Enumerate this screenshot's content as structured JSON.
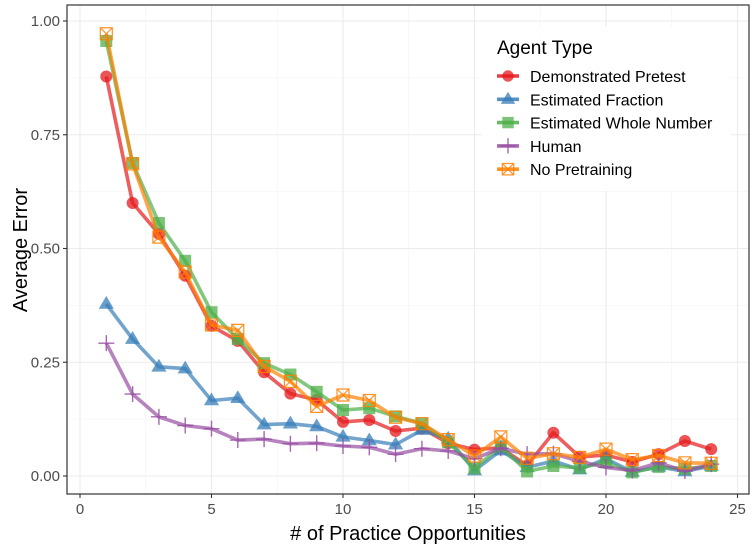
{
  "chart_data": {
    "type": "line",
    "xlabel": "# of Practice Opportunities",
    "ylabel": "Average Error",
    "xlim": [
      0,
      25
    ],
    "ylim": [
      0,
      1
    ],
    "x_ticks": [
      "0",
      "5",
      "10",
      "15",
      "20",
      "25"
    ],
    "y_ticks": [
      "0.00",
      "0.25",
      "0.50",
      "0.75",
      "1.00"
    ],
    "grid": true,
    "legend": {
      "title": "Agent Type",
      "placement": "top-right"
    },
    "x": [
      1,
      2,
      3,
      4,
      5,
      6,
      7,
      8,
      9,
      10,
      11,
      12,
      13,
      14,
      15,
      16,
      17,
      18,
      19,
      20,
      21,
      22,
      23,
      24
    ],
    "series": [
      {
        "name": "Demonstrated Pretest",
        "color": "#e41a1c",
        "marker": "circle",
        "values": [
          0.878,
          0.6,
          0.532,
          0.44,
          0.33,
          0.297,
          0.228,
          0.181,
          0.167,
          0.119,
          0.123,
          0.099,
          0.105,
          0.072,
          0.058,
          0.062,
          0.023,
          0.095,
          0.042,
          0.046,
          0.031,
          0.048,
          0.077,
          0.059
        ]
      },
      {
        "name": "Estimated Fraction",
        "color": "#377eb8",
        "marker": "triangle",
        "values": [
          0.378,
          0.301,
          0.24,
          0.236,
          0.166,
          0.171,
          0.113,
          0.115,
          0.109,
          0.086,
          0.078,
          0.069,
          0.101,
          0.082,
          0.012,
          0.056,
          0.019,
          0.033,
          0.014,
          0.038,
          0.009,
          0.02,
          0.01,
          0.022
        ]
      },
      {
        "name": "Estimated Whole Number",
        "color": "#4daf4a",
        "marker": "square",
        "values": [
          0.956,
          0.688,
          0.556,
          0.473,
          0.36,
          0.301,
          0.248,
          0.223,
          0.185,
          0.145,
          0.149,
          0.131,
          0.116,
          0.074,
          0.017,
          0.065,
          0.01,
          0.022,
          0.018,
          0.03,
          0.008,
          0.02,
          0.016,
          0.022
        ]
      },
      {
        "name": "Human",
        "color": "#984ea3",
        "marker": "plus",
        "values": [
          0.292,
          0.18,
          0.13,
          0.111,
          0.104,
          0.079,
          0.081,
          0.071,
          0.072,
          0.066,
          0.063,
          0.048,
          0.06,
          0.055,
          0.038,
          0.061,
          0.048,
          0.049,
          0.032,
          0.019,
          0.012,
          0.029,
          0.011,
          0.026
        ]
      },
      {
        "name": "No Pretraining",
        "color": "#ff7f00",
        "marker": "square-x",
        "values": [
          0.972,
          0.686,
          0.525,
          0.448,
          0.332,
          0.32,
          0.241,
          0.208,
          0.153,
          0.178,
          0.166,
          0.129,
          0.115,
          0.08,
          0.044,
          0.086,
          0.039,
          0.049,
          0.041,
          0.059,
          0.036,
          0.045,
          0.029,
          0.028
        ]
      }
    ]
  }
}
